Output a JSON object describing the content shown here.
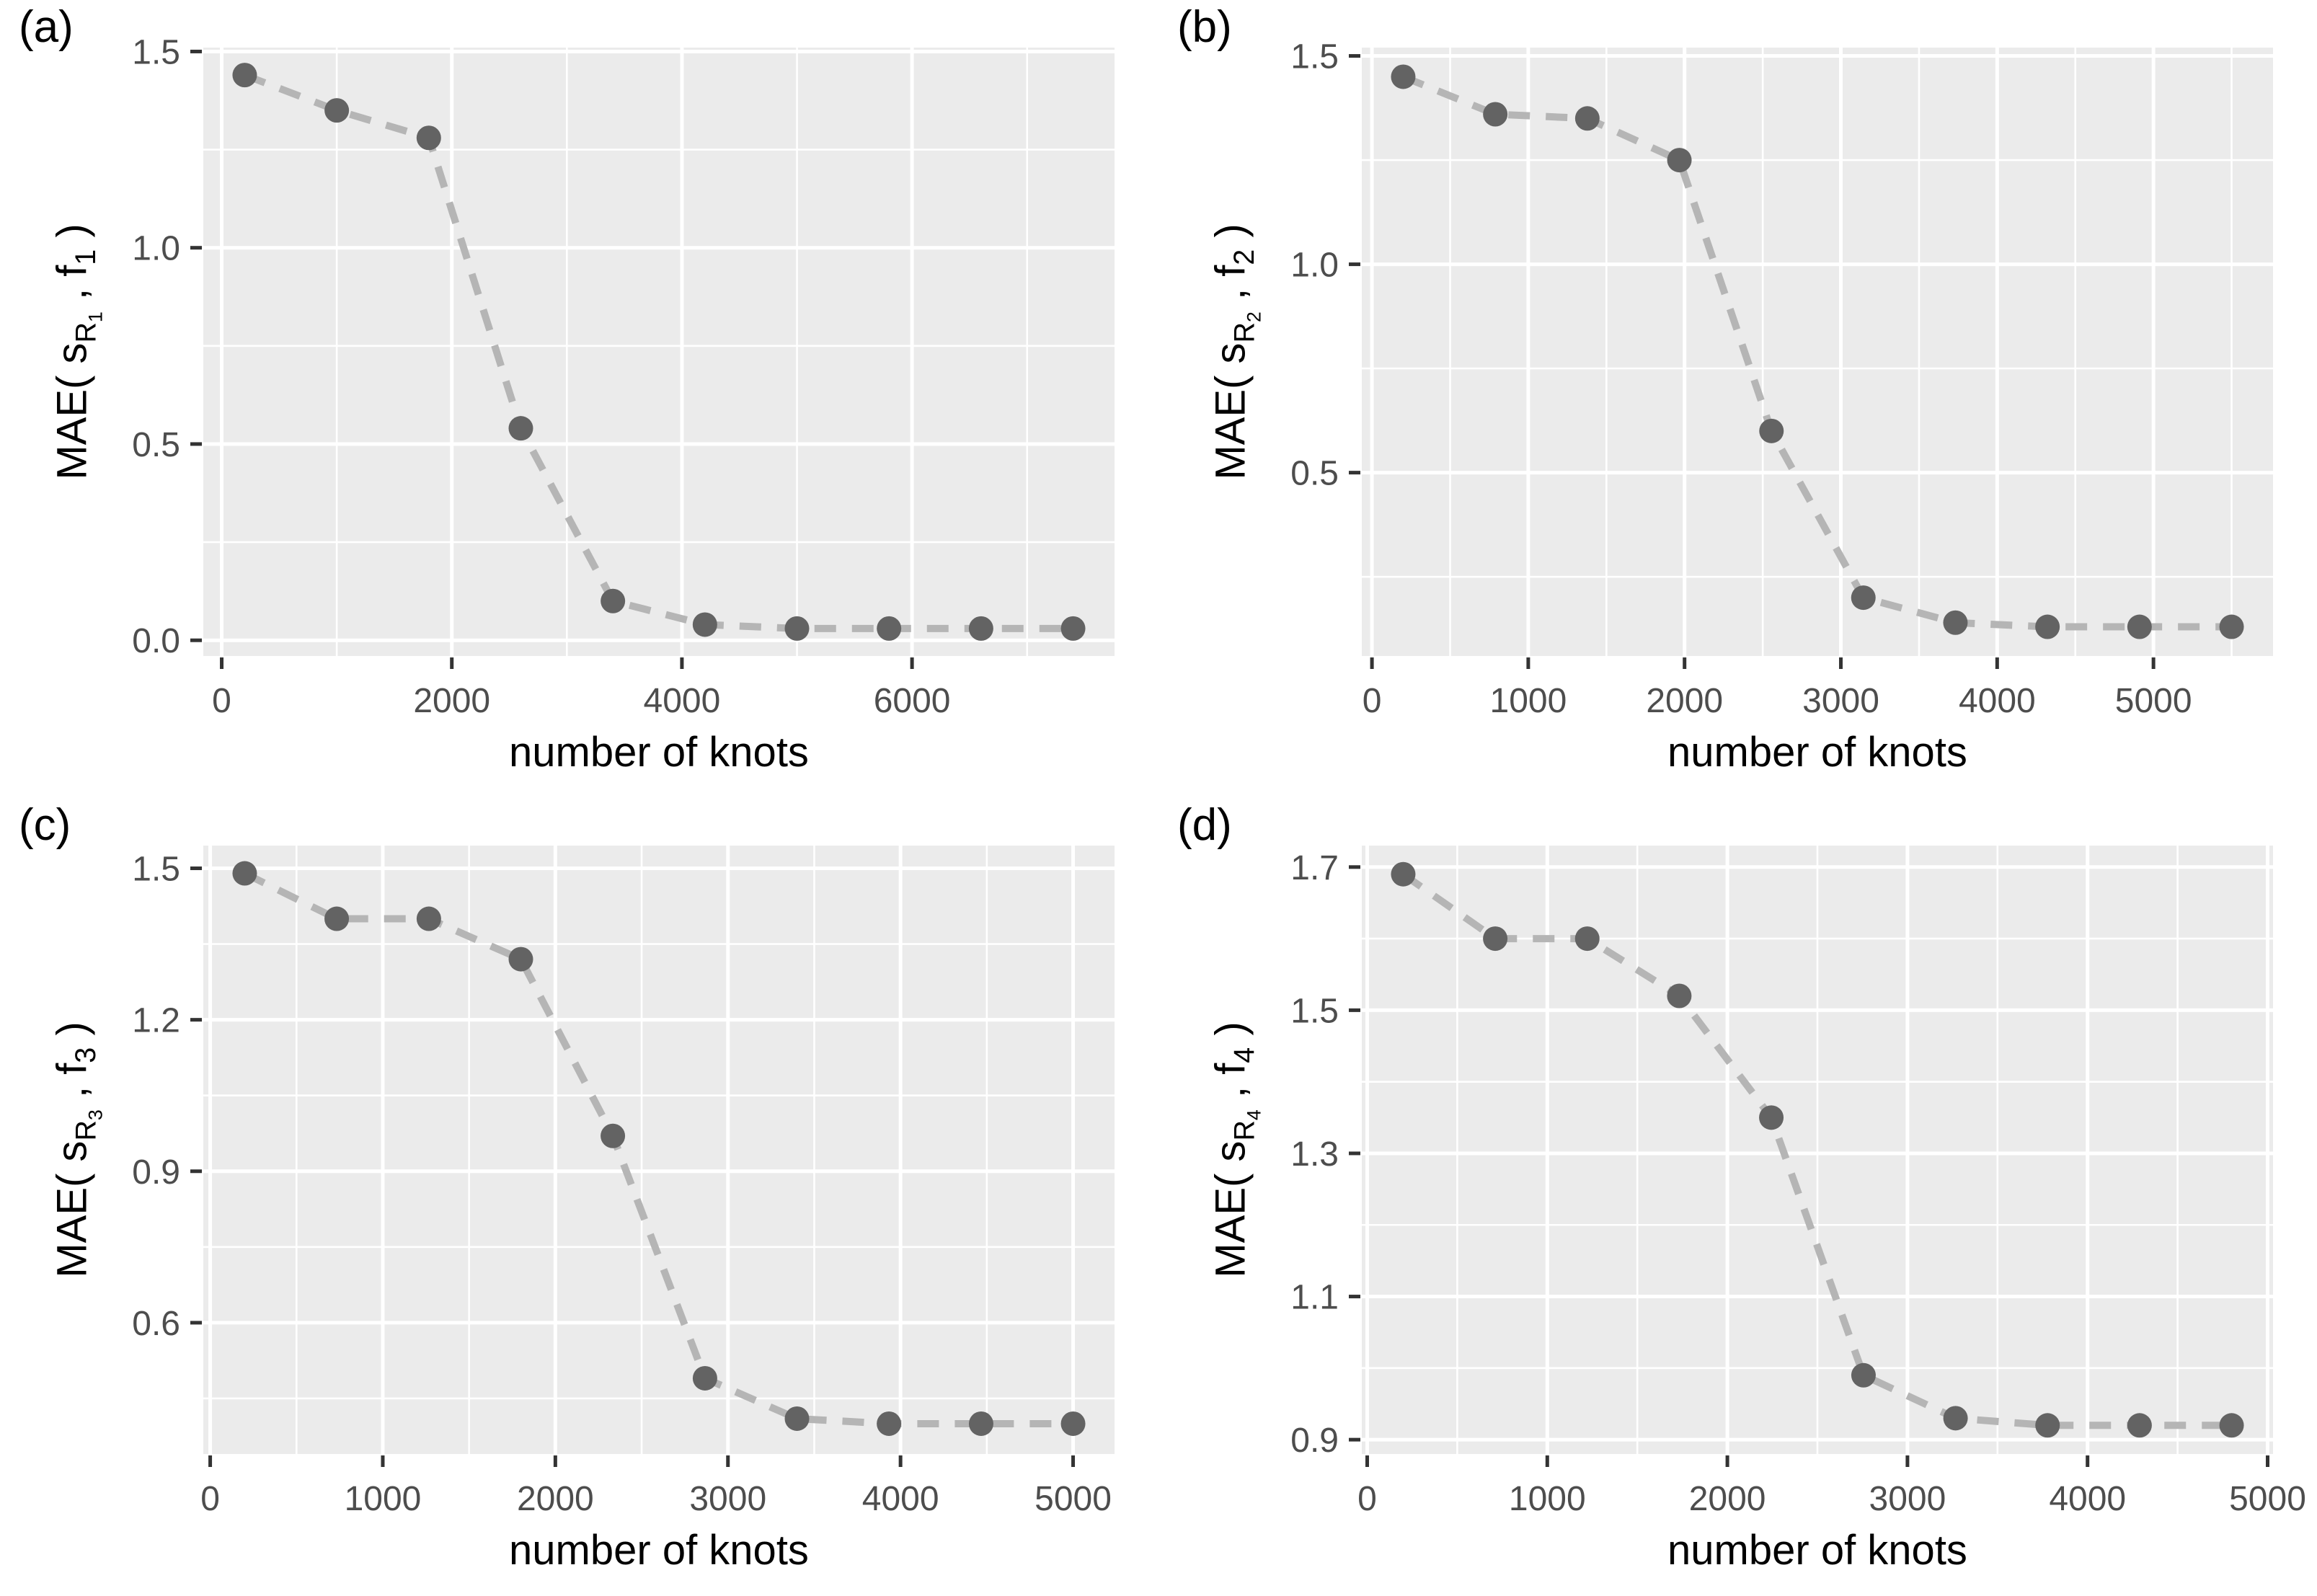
{
  "figure": {
    "background": "#ffffff",
    "style": {
      "panel_bg": "#ebebeb",
      "grid_color": "#ffffff",
      "major_grid_width": 5,
      "minor_grid_width": 2.6,
      "point_color": "#636363",
      "point_radius": 17,
      "dash_color": "#b5b5b5",
      "dash_width": 10,
      "dash_pattern": "30 22",
      "tick_mark_color": "#333333",
      "tick_label_color": "#4d4d4d",
      "tick_label_size": 48,
      "axis_title_color": "#000000"
    }
  },
  "chart_data": [
    {
      "type": "line",
      "panel_label": "(a)",
      "xlabel": "number of knots",
      "ylabel_parts": {
        "text_before": "MAE( s",
        "nested_sub_outer": "R",
        "nested_sub_inner": "1",
        "text_middle": " , f",
        "f_sub": "1",
        "text_after": " )"
      },
      "x": [
        200,
        1000,
        1800,
        2600,
        3400,
        4200,
        5000,
        5800,
        6600,
        7400
      ],
      "y": [
        1.44,
        1.35,
        1.28,
        0.54,
        0.1,
        0.04,
        0.03,
        0.03,
        0.03,
        0.03
      ],
      "x_ticks": [
        0,
        2000,
        4000,
        6000
      ],
      "x_tick_labels": [
        "0",
        "2000",
        "4000",
        "6000"
      ],
      "y_ticks": [
        0.0,
        0.5,
        1.0,
        1.5
      ],
      "y_tick_labels": [
        "0.0",
        "0.5",
        "1.0",
        "1.5"
      ],
      "xlim": [
        -160,
        7760
      ],
      "ylim": [
        -0.04,
        1.51
      ],
      "grid": true,
      "legend": false
    },
    {
      "type": "line",
      "panel_label": "(b)",
      "xlabel": "number of knots",
      "ylabel_parts": {
        "text_before": "MAE( s",
        "nested_sub_outer": "R",
        "nested_sub_inner": "2",
        "text_middle": " , f",
        "f_sub": "2",
        "text_after": " )"
      },
      "x": [
        200,
        789,
        1378,
        1967,
        2556,
        3144,
        3733,
        4322,
        4911,
        5500
      ],
      "y": [
        1.45,
        1.36,
        1.35,
        1.25,
        0.6,
        0.2,
        0.14,
        0.13,
        0.13,
        0.13
      ],
      "x_ticks": [
        0,
        1000,
        2000,
        3000,
        4000,
        5000
      ],
      "x_tick_labels": [
        "0",
        "1000",
        "2000",
        "3000",
        "4000",
        "5000"
      ],
      "y_ticks": [
        0.5,
        1.0,
        1.5
      ],
      "y_tick_labels": [
        "0.5",
        "1.0",
        "1.5"
      ],
      "xlim": [
        -65,
        5765
      ],
      "ylim": [
        0.06,
        1.52
      ],
      "grid": true,
      "legend": false
    },
    {
      "type": "line",
      "panel_label": "(c)",
      "xlabel": "number of knots",
      "ylabel_parts": {
        "text_before": "MAE( s",
        "nested_sub_outer": "R",
        "nested_sub_inner": "3",
        "text_middle": " , f",
        "f_sub": "3",
        "text_after": " )"
      },
      "x": [
        200,
        733,
        1267,
        1800,
        2333,
        2867,
        3400,
        3933,
        4467,
        5000
      ],
      "y": [
        1.49,
        1.4,
        1.4,
        1.32,
        0.97,
        0.49,
        0.41,
        0.4,
        0.4,
        0.4
      ],
      "x_ticks": [
        0,
        1000,
        2000,
        3000,
        4000,
        5000
      ],
      "x_tick_labels": [
        "0",
        "1000",
        "2000",
        "3000",
        "4000",
        "5000"
      ],
      "y_ticks": [
        0.6,
        0.9,
        1.2,
        1.5
      ],
      "y_tick_labels": [
        "0.6",
        "0.9",
        "1.2",
        "1.5"
      ],
      "xlim": [
        -40,
        5240
      ],
      "ylim": [
        0.34,
        1.545
      ],
      "grid": true,
      "legend": false
    },
    {
      "type": "line",
      "panel_label": "(d)",
      "xlabel": "number of knots",
      "ylabel_parts": {
        "text_before": "MAE( s",
        "nested_sub_outer": "R",
        "nested_sub_inner": "4",
        "text_middle": " , f",
        "f_sub": "4",
        "text_after": " )"
      },
      "x": [
        200,
        711,
        1222,
        1733,
        2244,
        2756,
        3267,
        3778,
        4289,
        4800
      ],
      "y": [
        1.69,
        1.6,
        1.6,
        1.52,
        1.35,
        0.99,
        0.93,
        0.92,
        0.92,
        0.92
      ],
      "x_ticks": [
        0,
        1000,
        2000,
        3000,
        4000,
        5000
      ],
      "x_tick_labels": [
        "0",
        "1000",
        "2000",
        "3000",
        "4000",
        "5000"
      ],
      "y_ticks": [
        0.9,
        1.1,
        1.3,
        1.5,
        1.7
      ],
      "y_tick_labels": [
        "0.9",
        "1.1",
        "1.3",
        "1.5",
        "1.7"
      ],
      "xlim": [
        -30,
        5030
      ],
      "ylim": [
        0.88,
        1.73
      ],
      "grid": true,
      "legend": false
    }
  ]
}
